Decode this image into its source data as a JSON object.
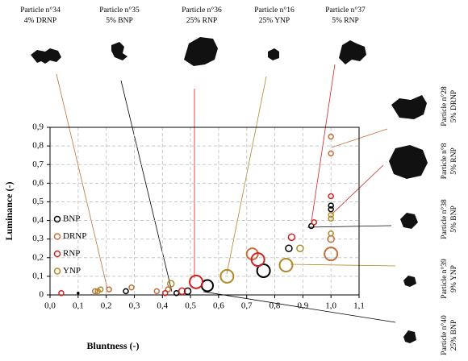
{
  "chart_data": {
    "type": "scatter",
    "xlabel": "Bluntness (-)",
    "ylabel": "Luminance (-)",
    "xlim": [
      0,
      1.1
    ],
    "ylim": [
      0,
      0.9
    ],
    "xticks": [
      {
        "value": 0,
        "label": "0,0"
      },
      {
        "value": 0.1,
        "label": "0,1"
      },
      {
        "value": 0.2,
        "label": "0,2"
      },
      {
        "value": 0.3,
        "label": "0,3"
      },
      {
        "value": 0.4,
        "label": "0,4"
      },
      {
        "value": 0.5,
        "label": "0,5"
      },
      {
        "value": 0.6,
        "label": "0,6"
      },
      {
        "value": 0.7,
        "label": "0,7"
      },
      {
        "value": 0.8,
        "label": "0,8"
      },
      {
        "value": 0.9,
        "label": "0,9"
      },
      {
        "value": 1.0,
        "label": "1,0"
      },
      {
        "value": 1.1,
        "label": "1,1"
      }
    ],
    "yticks": [
      0,
      {
        "value": 0.1,
        "label": "0,1"
      },
      {
        "value": 0.2,
        "label": "0,2"
      },
      {
        "value": 0.3,
        "label": "0,3"
      },
      {
        "value": 0.4,
        "label": "0,4"
      },
      {
        "value": 0.5,
        "label": "0,5"
      },
      {
        "value": 0.6,
        "label": "0,6"
      },
      {
        "value": 0.7,
        "label": "0,7"
      },
      {
        "value": 0.8,
        "label": "0,8"
      },
      {
        "value": 0.9,
        "label": "0,9"
      }
    ],
    "grid": true,
    "legend": "left",
    "series": [
      {
        "name": "BNP",
        "color": "#000000",
        "x": [
          0.1,
          0.27,
          0.45,
          0.49,
          0.56,
          0.76,
          0.85,
          0.93,
          1.0,
          1.0
        ],
        "values": [
          0.01,
          0.02,
          0.01,
          0.02,
          0.05,
          0.13,
          0.25,
          0.37,
          0.48,
          0.46
        ],
        "sizes": [
          1,
          3,
          3,
          4,
          7,
          8,
          4,
          3,
          3,
          3
        ]
      },
      {
        "name": "DRNP",
        "color": "#c0703a",
        "x": [
          0.16,
          0.21,
          0.29,
          0.38,
          0.42,
          0.72,
          1.0,
          1.0,
          1.0,
          1.0
        ],
        "values": [
          0.02,
          0.03,
          0.04,
          0.02,
          0.03,
          0.22,
          0.85,
          0.76,
          0.3,
          0.22
        ],
        "sizes": [
          3,
          3,
          3,
          3,
          3,
          7,
          3,
          3,
          4,
          8
        ]
      },
      {
        "name": "RNP",
        "color": "#d42020",
        "x": [
          0.04,
          0.41,
          0.47,
          0.52,
          0.74,
          0.86,
          0.94,
          1.0
        ],
        "values": [
          0.01,
          0.01,
          0.02,
          0.07,
          0.19,
          0.31,
          0.39,
          0.53
        ],
        "sizes": [
          3,
          3,
          4,
          8,
          8,
          4,
          3,
          3
        ]
      },
      {
        "name": "YNP",
        "color": "#b08a28",
        "x": [
          0.17,
          0.18,
          0.43,
          0.63,
          0.84,
          0.89,
          1.0,
          1.0,
          1.0
        ],
        "values": [
          0.02,
          0.03,
          0.06,
          0.1,
          0.16,
          0.25,
          0.43,
          0.41,
          0.33
        ],
        "sizes": [
          3,
          3,
          4,
          8,
          8,
          4,
          3,
          3,
          3
        ]
      }
    ],
    "top_particles": [
      {
        "label": "Particle n°34",
        "share": "4% DRNP"
      },
      {
        "label": "Particle n°35",
        "share": "5% BNP"
      },
      {
        "label": "Particle n°36",
        "share": "25% RNP"
      },
      {
        "label": "Particle n°16",
        "share": "25% YNP"
      },
      {
        "label": "Particle n°37",
        "share": "5% RNP"
      }
    ],
    "side_particles": [
      {
        "label": "Particle n°28",
        "share": "5% DRNP"
      },
      {
        "label": "Particle n°8",
        "share": "5% RNP"
      },
      {
        "label": "Particle n°38",
        "share": "5% BNP"
      },
      {
        "label": "Particle n°39",
        "share": "9% YNP"
      },
      {
        "label": "Particle n°40",
        "share": "25% BNP"
      }
    ]
  }
}
